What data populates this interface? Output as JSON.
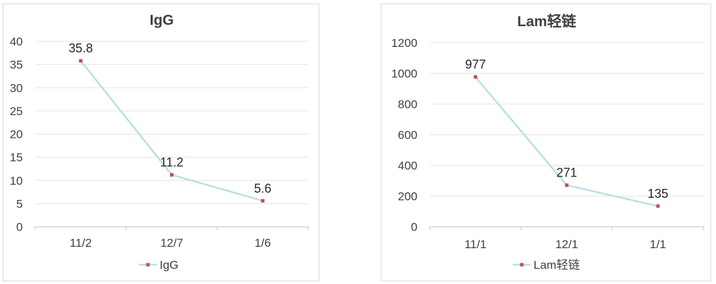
{
  "chart_data": [
    {
      "type": "line",
      "title": "IgG",
      "categories": [
        "11/2",
        "12/7",
        "1/6"
      ],
      "series": [
        {
          "name": "IgG",
          "values": [
            35.8,
            11.2,
            5.6
          ],
          "labels": [
            "35.8",
            "11.2",
            "5.6"
          ]
        }
      ],
      "ylim": [
        0,
        40
      ],
      "yticks": [
        "0",
        "5",
        "10",
        "15",
        "20",
        "25",
        "30",
        "35",
        "40"
      ],
      "grid": true,
      "legend": "bottom",
      "colors": {
        "line": "#b8e0e4",
        "marker": "#c0504d"
      }
    },
    {
      "type": "line",
      "title": "Lam轻链",
      "categories": [
        "11/1",
        "12/1",
        "1/1"
      ],
      "series": [
        {
          "name": "Lam轻链",
          "values": [
            977,
            271,
            135
          ],
          "labels": [
            "977",
            "271",
            "135"
          ]
        }
      ],
      "ylim": [
        0,
        1200
      ],
      "yticks": [
        "0",
        "200",
        "400",
        "600",
        "800",
        "1000",
        "1200"
      ],
      "grid": true,
      "legend": "bottom",
      "colors": {
        "line": "#b8e0e4",
        "marker": "#c0504d"
      }
    }
  ]
}
